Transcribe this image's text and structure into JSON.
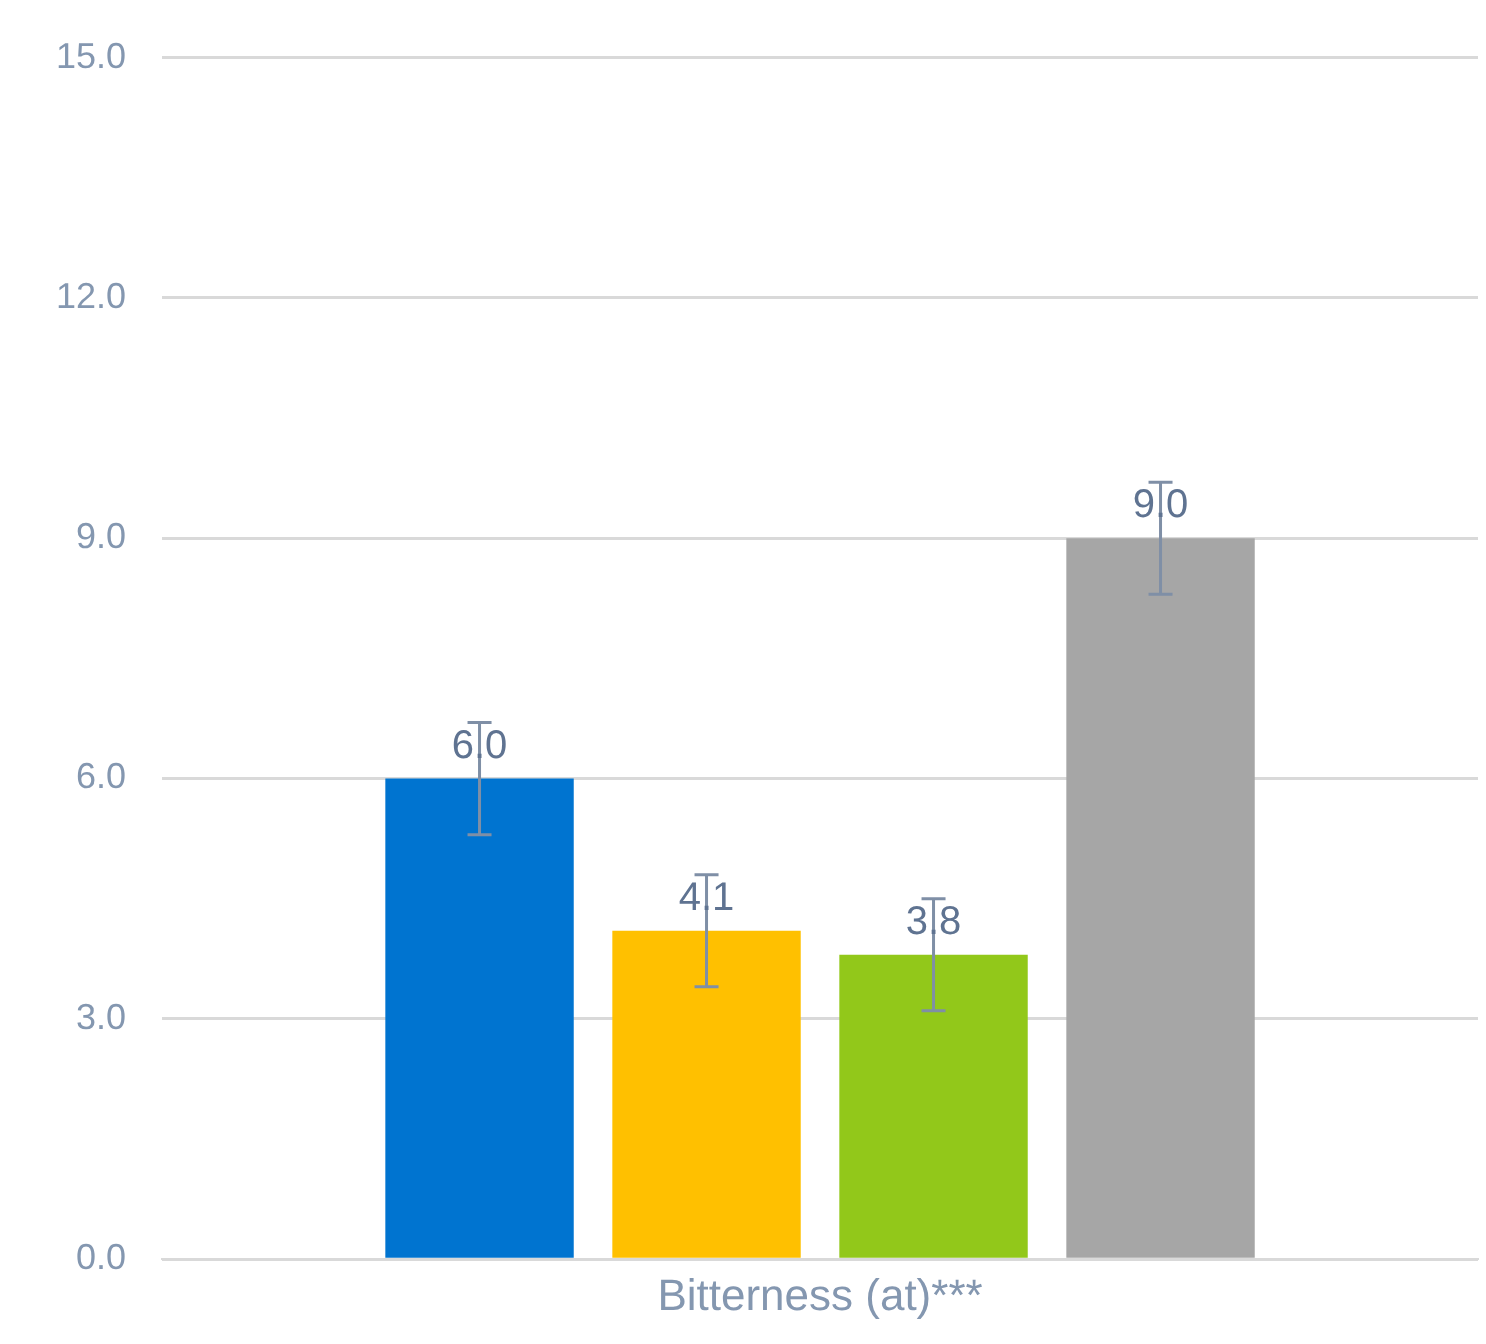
{
  "chart_data": {
    "type": "bar",
    "categories": [
      "Bitterness (at)***"
    ],
    "series": [
      {
        "color": "#0074d0",
        "values": [
          6.0
        ],
        "errors": [
          0.7
        ],
        "value_labels": [
          "6.0"
        ]
      },
      {
        "color": "#ffc000",
        "values": [
          4.1
        ],
        "errors": [
          0.7
        ],
        "value_labels": [
          "4.1"
        ]
      },
      {
        "color": "#92c81a",
        "values": [
          3.8
        ],
        "errors": [
          0.7
        ],
        "value_labels": [
          "3.8"
        ]
      },
      {
        "color": "#a6a6a6",
        "values": [
          9.0
        ],
        "errors": [
          0.7
        ],
        "value_labels": [
          "9.0"
        ]
      }
    ],
    "ylim": [
      0,
      15
    ],
    "yticks": [
      {
        "value": 0,
        "label": "0.0"
      },
      {
        "value": 3,
        "label": "3.0"
      },
      {
        "value": 6,
        "label": "6.0"
      },
      {
        "value": 9,
        "label": "9.0"
      },
      {
        "value": 12,
        "label": "12.0"
      },
      {
        "value": 15,
        "label": "15.0"
      }
    ],
    "grid": "y",
    "legend": false
  }
}
